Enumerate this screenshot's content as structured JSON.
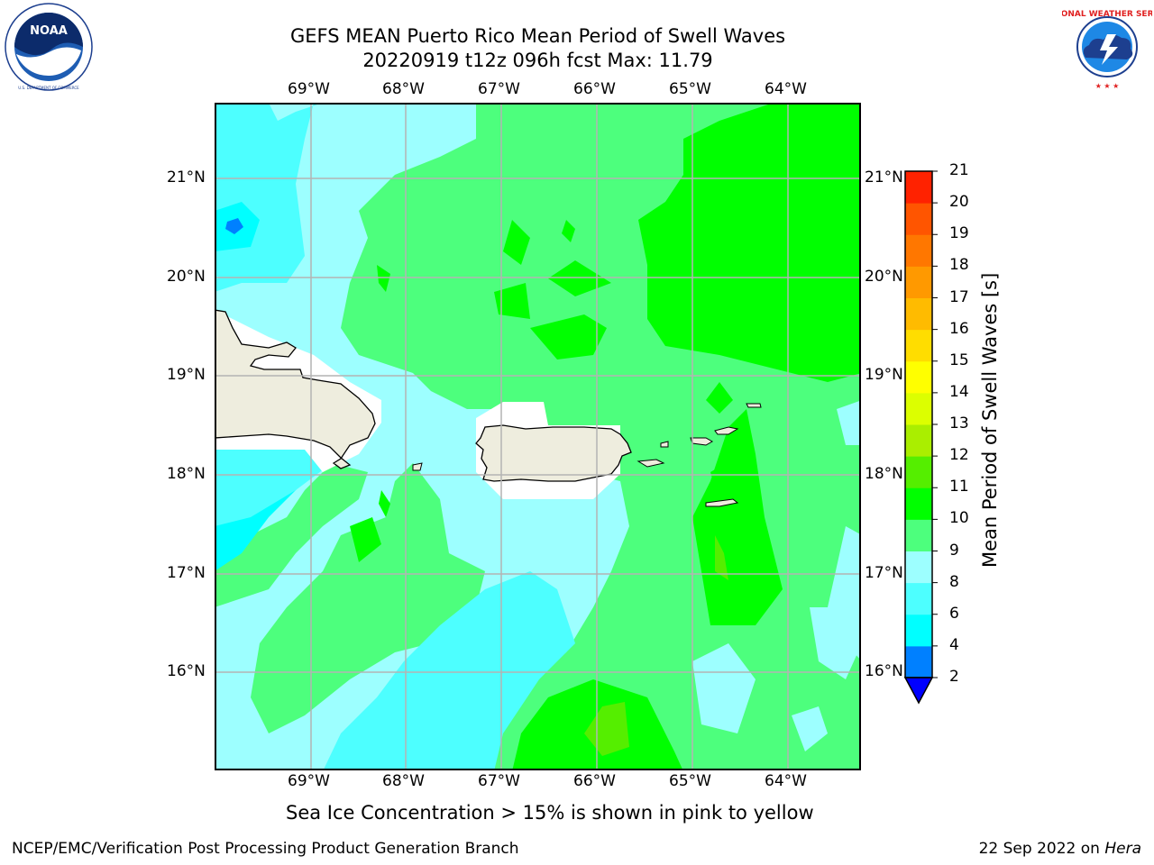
{
  "title": {
    "line1": "GEFS MEAN Puerto Rico Mean Period of Swell Waves",
    "line2": "20220919 t12z 096h fcst   Max: 11.79"
  },
  "map": {
    "lon_ticks": [
      "69°W",
      "68°W",
      "67°W",
      "66°W",
      "65°W",
      "64°W"
    ],
    "lat_ticks": [
      "21°N",
      "20°N",
      "19°N",
      "18°N",
      "17°N",
      "16°N"
    ],
    "land_color": "#eeedde",
    "grid_color": "#b4b4b4"
  },
  "colorbar": {
    "title": "Mean Period of Swell Waves [s]",
    "levels": [
      "2",
      "4",
      "6",
      "8",
      "9",
      "10",
      "11",
      "12",
      "13",
      "14",
      "15",
      "16",
      "17",
      "18",
      "19",
      "20",
      "21"
    ],
    "colors": [
      "#0000ff",
      "#0080ff",
      "#00ffff",
      "#4dffff",
      "#9dffff",
      "#4dff7d",
      "#00ff00",
      "#55ee00",
      "#aaee00",
      "#dcff00",
      "#ffff00",
      "#ffdd00",
      "#ffbb00",
      "#ff9900",
      "#ff7700",
      "#ff5500",
      "#ff2200"
    ],
    "under_color": "#0000ff"
  },
  "caption": "Sea Ice Concentration > 15% is shown in pink to yellow",
  "footer": {
    "left": "NCEP/EMC/Verification Post Processing Product Generation Branch",
    "right_prefix": "22 Sep 2022 on ",
    "right_host": "Hera"
  },
  "logos": {
    "left": {
      "name": "noaa-logo",
      "text": "NOAA"
    },
    "right": {
      "name": "nws-logo",
      "text": "NATIONAL WEATHER SERVICE"
    }
  }
}
